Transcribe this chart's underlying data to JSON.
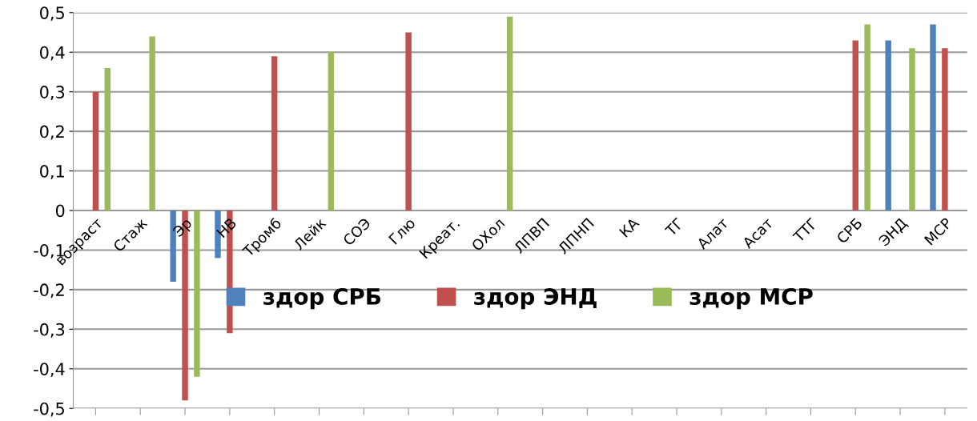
{
  "chart_data": {
    "type": "bar",
    "categories": [
      "возраст",
      "Стаж",
      "Эр",
      "НВ",
      "Тромб",
      "Лейк",
      "СОЭ",
      "Глю",
      "Креат.",
      "ОХол",
      "ЛПВП",
      "ЛПНП",
      "КА",
      "ТГ",
      "Алат",
      "Асат",
      "ТТГ",
      "СРБ",
      "ЭНД",
      "МСР"
    ],
    "series": [
      {
        "name": "здор СРБ",
        "color": "#4f81bd",
        "values": [
          0,
          0,
          -0.18,
          -0.12,
          0,
          0,
          0,
          0,
          0,
          0,
          0,
          0,
          0,
          0,
          0,
          0,
          0,
          0,
          0.43,
          0.47
        ]
      },
      {
        "name": "здор ЭНД",
        "color": "#c0504d",
        "values": [
          0.3,
          0,
          -0.48,
          -0.31,
          0.39,
          0,
          0,
          0.45,
          0,
          0,
          0,
          0,
          0,
          0,
          0,
          0,
          0,
          0.43,
          0,
          0.41
        ]
      },
      {
        "name": "здор МСР",
        "color": "#9bbb59",
        "values": [
          0.36,
          0.44,
          -0.42,
          0,
          0,
          0.4,
          0,
          0,
          0,
          0.49,
          0,
          0,
          0,
          0,
          0,
          0,
          0,
          0.47,
          0.41,
          0
        ]
      }
    ],
    "ylim": [
      -0.5,
      0.5
    ],
    "yticks": [
      {
        "value": -0.5,
        "label": "-0,5"
      },
      {
        "value": -0.4,
        "label": "-0,4"
      },
      {
        "value": -0.3,
        "label": "-0,3"
      },
      {
        "value": -0.2,
        "label": "-0,2"
      },
      {
        "value": -0.1,
        "label": "-0,1"
      },
      0,
      {
        "value": 0.1,
        "label": "0,1"
      },
      {
        "value": 0.2,
        "label": "0,2"
      },
      {
        "value": 0.3,
        "label": "0,3"
      },
      {
        "value": 0.4,
        "label": "0,4"
      },
      {
        "value": 0.5,
        "label": "0,5"
      }
    ],
    "grid": "y",
    "legend": "bottom"
  }
}
